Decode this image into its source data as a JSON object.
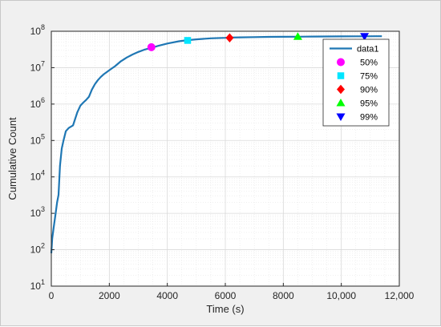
{
  "chart_data": {
    "type": "line",
    "xlabel": "Time (s)",
    "ylabel": "Cumulative Count",
    "xlim": [
      0,
      12000
    ],
    "ylim_log10": [
      1,
      8
    ],
    "yscale": "log",
    "grid": true,
    "x_ticks": [
      0,
      2000,
      4000,
      6000,
      8000,
      10000,
      12000
    ],
    "x_tick_labels": [
      "0",
      "2000",
      "4000",
      "6000",
      "8000",
      "10,000",
      "12,000"
    ],
    "y_ticks_exponent": [
      1,
      2,
      3,
      4,
      5,
      6,
      7,
      8
    ],
    "y_tick_base": "10",
    "legend_position": "top-right",
    "series": [
      {
        "name": "data1",
        "color": "#1f77b4",
        "x": [
          0,
          30,
          80,
          150,
          200,
          250,
          300,
          360,
          420,
          500,
          600,
          750,
          900,
          1000,
          1100,
          1200,
          1300,
          1400,
          1500,
          1600,
          1700,
          1800,
          2000,
          2200,
          2400,
          2600,
          2800,
          3000,
          3200,
          3450,
          3700,
          4000,
          4400,
          4700,
          5000,
          5500,
          6000,
          6150,
          6500,
          7000,
          7500,
          8000,
          8500,
          9000,
          9500,
          10000,
          10500,
          10800,
          11200,
          11400
        ],
        "y": [
          80,
          200,
          400,
          1000,
          2000,
          3200,
          20000,
          60000,
          100000,
          180000,
          220000,
          260000,
          600000,
          900000,
          1100000,
          1300000,
          1600000,
          2500000,
          3500000,
          4500000,
          5500000,
          6500000,
          8500000,
          11000000,
          15000000,
          19000000,
          23000000,
          27000000,
          31000000,
          35000000,
          40000000,
          46000000,
          53000000,
          57000000,
          60000000,
          64000000,
          66000000,
          67000000,
          68000000,
          69000000,
          70000000,
          70500000,
          71000000,
          71500000,
          72000000,
          72300000,
          72600000,
          72800000,
          73000000,
          73000000
        ]
      }
    ],
    "markers": [
      {
        "name": "50%",
        "x": 3450,
        "y": 36500000,
        "shape": "circle",
        "color": "#ff00ff"
      },
      {
        "name": "75%",
        "x": 4700,
        "y": 56000000,
        "shape": "square",
        "color": "#00e5ff"
      },
      {
        "name": "90%",
        "x": 6150,
        "y": 66000000,
        "shape": "diamond",
        "color": "#ff0000"
      },
      {
        "name": "95%",
        "x": 8500,
        "y": 71000000,
        "shape": "triangle-up",
        "color": "#00ff00"
      },
      {
        "name": "99%",
        "x": 10800,
        "y": 72800000,
        "shape": "triangle-down",
        "color": "#0000ff"
      }
    ]
  }
}
